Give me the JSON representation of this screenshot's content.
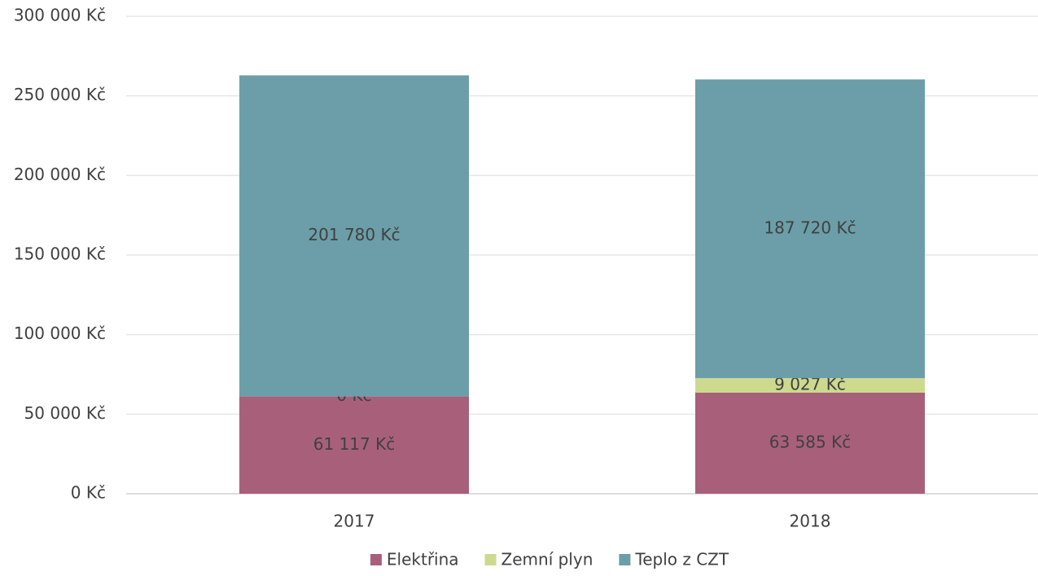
{
  "chart_data": {
    "type": "stacked_bar",
    "categories": [
      "2017",
      "2018"
    ],
    "series": [
      {
        "name": "Elektřina",
        "color": "#a8607a",
        "values": [
          61117,
          63585
        ],
        "value_labels": [
          "61 117 Kč",
          "63 585 Kč"
        ]
      },
      {
        "name": "Zemní plyn",
        "color": "#cdda8e",
        "values": [
          0,
          9027
        ],
        "value_labels": [
          "0 Kč",
          "9 027 Kč"
        ]
      },
      {
        "name": "Teplo z CZT",
        "color": "#6b9ea8",
        "values": [
          201780,
          187720
        ],
        "value_labels": [
          "201 780 Kč",
          "187 720 Kč"
        ]
      }
    ],
    "ylim": [
      0,
      300000
    ],
    "yticks": [
      {
        "value": 0,
        "label": "0 Kč"
      },
      {
        "value": 50000,
        "label": "50 000 Kč"
      },
      {
        "value": 100000,
        "label": "100 000 Kč"
      },
      {
        "value": 150000,
        "label": "150 000 Kč"
      },
      {
        "value": 200000,
        "label": "200 000 Kč"
      },
      {
        "value": 250000,
        "label": "250 000 Kč"
      },
      {
        "value": 300000,
        "label": "300 000 Kč"
      }
    ],
    "grid": true,
    "legend": "bottom"
  }
}
